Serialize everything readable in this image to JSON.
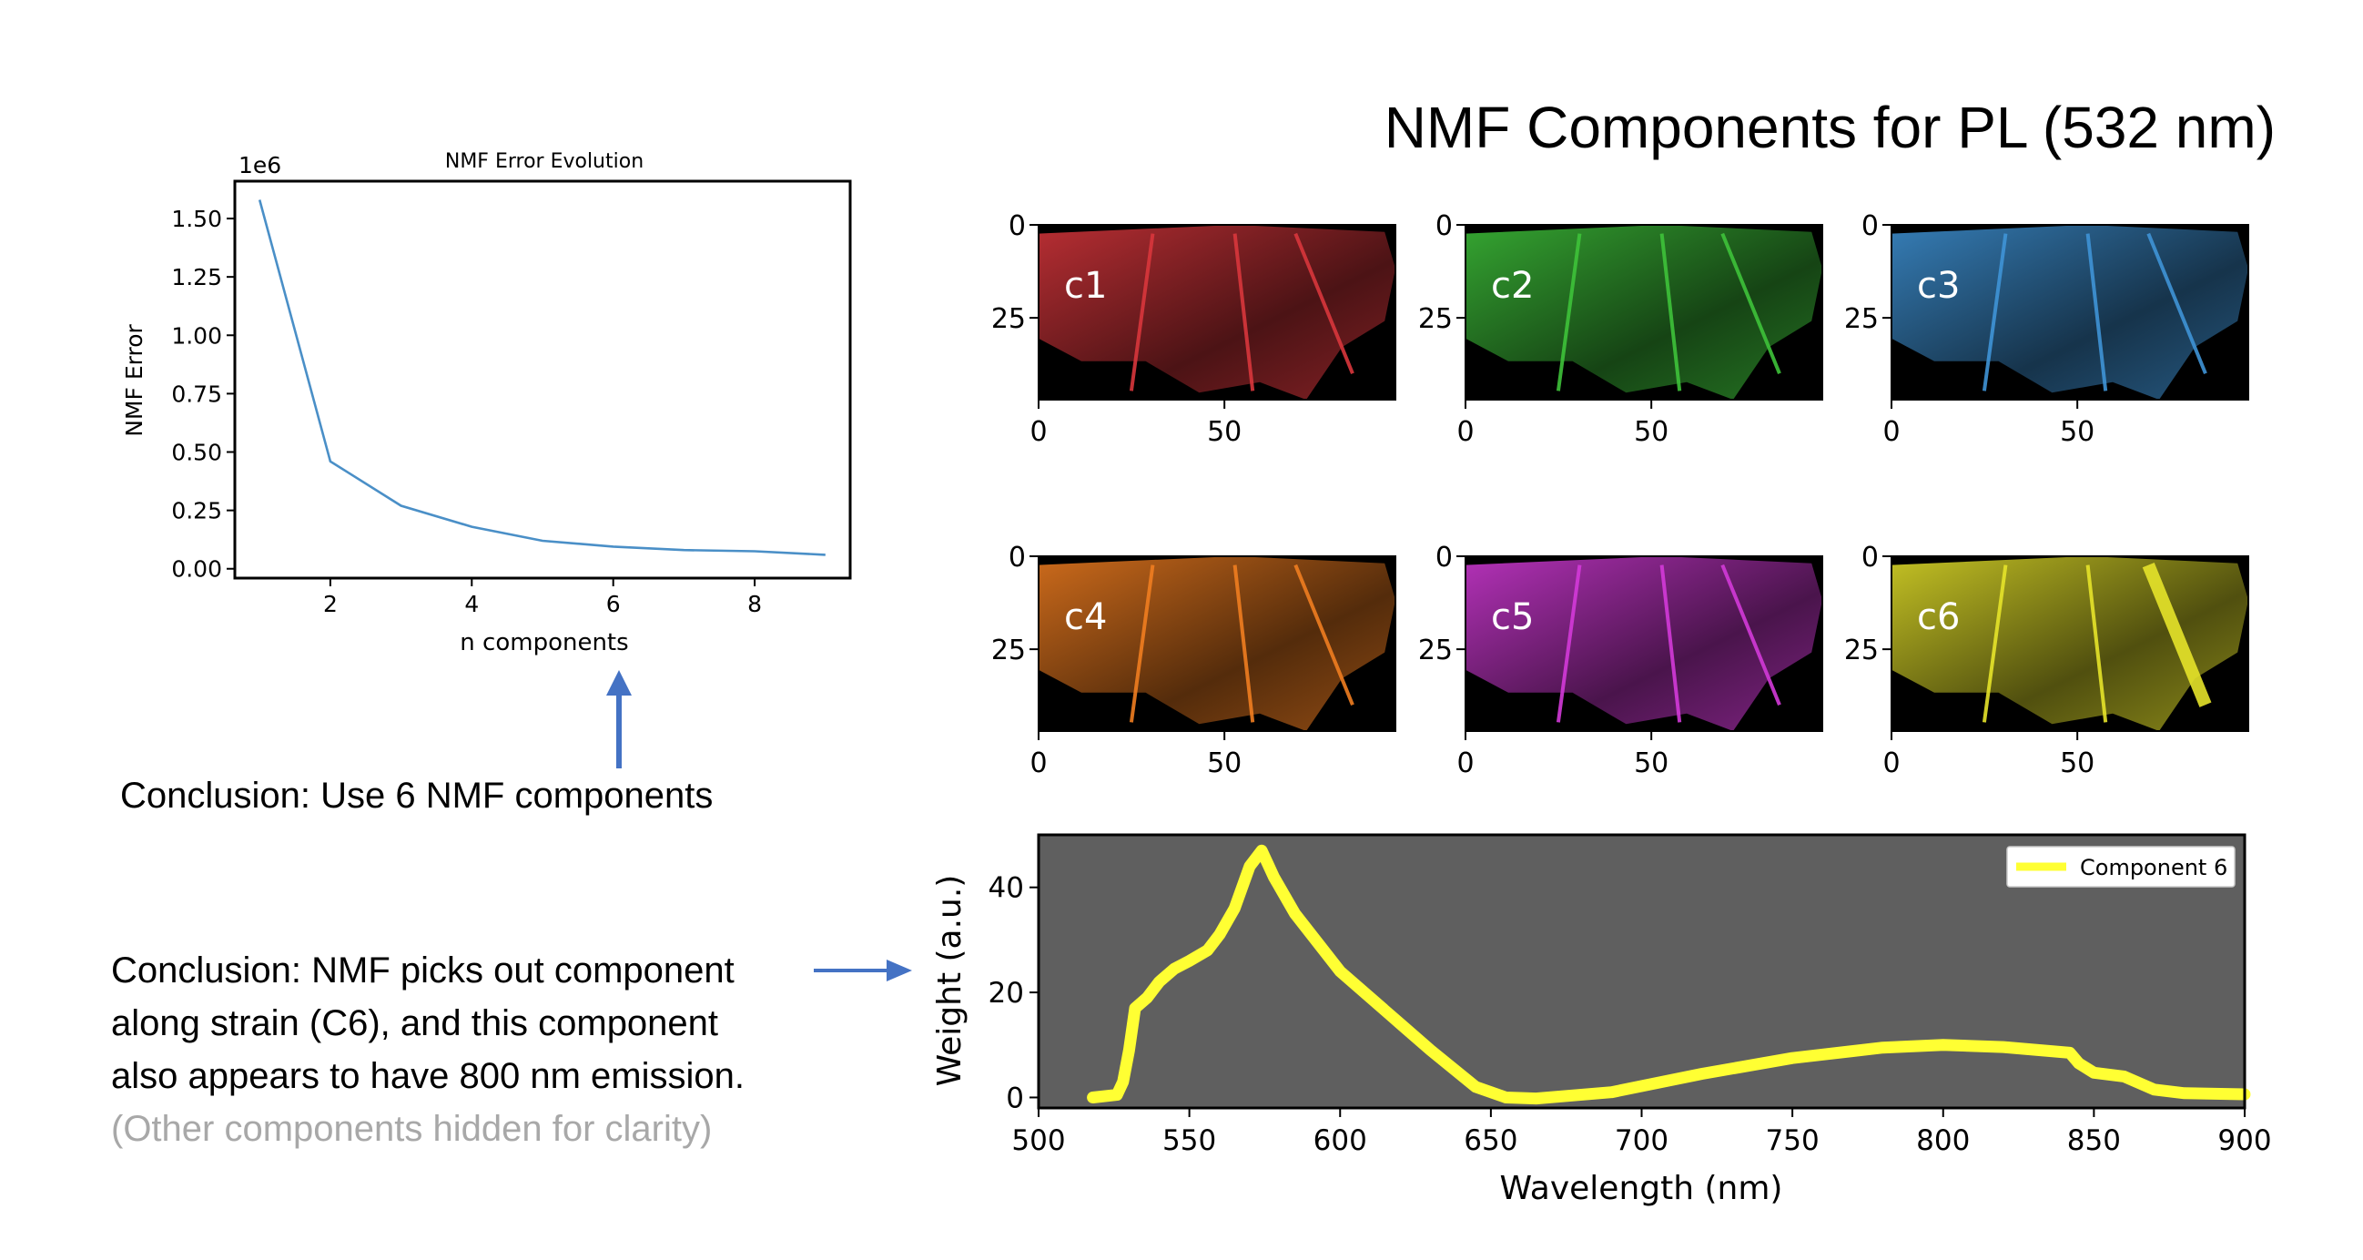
{
  "slide": {
    "title": "NMF Components for PL (532 nm)",
    "conclusion_1": "Conclusion: Use 6 NMF components",
    "conclusion_2_lines": [
      "Conclusion: NMF picks out component",
      "along strain (C6), and this component",
      "also appears to have 800 nm emission."
    ],
    "conclusion_2_note": "(Other components hidden for clarity)",
    "arrow_color": "#4472c4"
  },
  "chart_data": [
    {
      "type": "line",
      "title": "NMF Error Evolution",
      "xlabel": "n components",
      "ylabel": "NMF Error",
      "y_multiplier_label": "1e6",
      "xlim": [
        0.65,
        9.35
      ],
      "ylim": [
        -0.04,
        1.66
      ],
      "xticks": [
        2,
        4,
        6,
        8
      ],
      "yticks": [
        0.0,
        0.25,
        0.5,
        0.75,
        1.0,
        1.25,
        1.5
      ],
      "ytick_labels": [
        "0.00",
        "0.25",
        "0.50",
        "0.75",
        "1.00",
        "1.25",
        "1.50"
      ],
      "grid": false,
      "line_color": "#4a8fc7",
      "x": [
        1,
        2,
        3,
        4,
        5,
        6,
        7,
        8,
        9
      ],
      "y": [
        1.58,
        0.46,
        0.27,
        0.18,
        0.12,
        0.095,
        0.08,
        0.075,
        0.06
      ]
    },
    {
      "type": "heatmap",
      "grid_layout": "2 rows x 3 columns",
      "xlim": [
        0,
        96
      ],
      "ylim": [
        47,
        0
      ],
      "xticks": [
        0,
        50
      ],
      "yticks": [
        0,
        25
      ],
      "panels": [
        {
          "label": "c1",
          "colormap": "Reds",
          "color": "#d8363c"
        },
        {
          "label": "c2",
          "colormap": "Greens",
          "color": "#3ec23a"
        },
        {
          "label": "c3",
          "colormap": "Blues",
          "color": "#3f93d6"
        },
        {
          "label": "c4",
          "colormap": "Oranges",
          "color": "#f07d20"
        },
        {
          "label": "c5",
          "colormap": "Purples",
          "color": "#d33ad8"
        },
        {
          "label": "c6",
          "colormap": "Yellows",
          "color": "#e6e32a"
        }
      ]
    },
    {
      "type": "line",
      "xlabel": "Wavelength (nm)",
      "ylabel": "Weight (a.u.)",
      "xlim": [
        500,
        900
      ],
      "ylim": [
        -2,
        50
      ],
      "xticks": [
        500,
        550,
        600,
        650,
        700,
        750,
        800,
        850,
        900
      ],
      "yticks": [
        0,
        20,
        40
      ],
      "grid": false,
      "background": "#5f5f5f",
      "legend_position": "top-right",
      "series": [
        {
          "name": "Component 6",
          "color": "#ffff33",
          "x": [
            518,
            526,
            528,
            530,
            532,
            536,
            540,
            545,
            550,
            556,
            560,
            565,
            570,
            574,
            578,
            585,
            600,
            620,
            630,
            645,
            655,
            665,
            690,
            720,
            750,
            780,
            800,
            820,
            842,
            845,
            850,
            860,
            870,
            880,
            900
          ],
          "y": [
            0,
            0.5,
            3,
            9,
            17,
            19,
            22,
            24.5,
            26,
            28,
            31,
            36,
            44,
            47,
            42,
            35,
            24,
            14,
            9,
            2,
            0,
            -0.2,
            1,
            4.5,
            7.5,
            9.5,
            10,
            9.6,
            8.5,
            6.5,
            4.7,
            4,
            1.5,
            0.8,
            0.6
          ]
        }
      ]
    }
  ]
}
